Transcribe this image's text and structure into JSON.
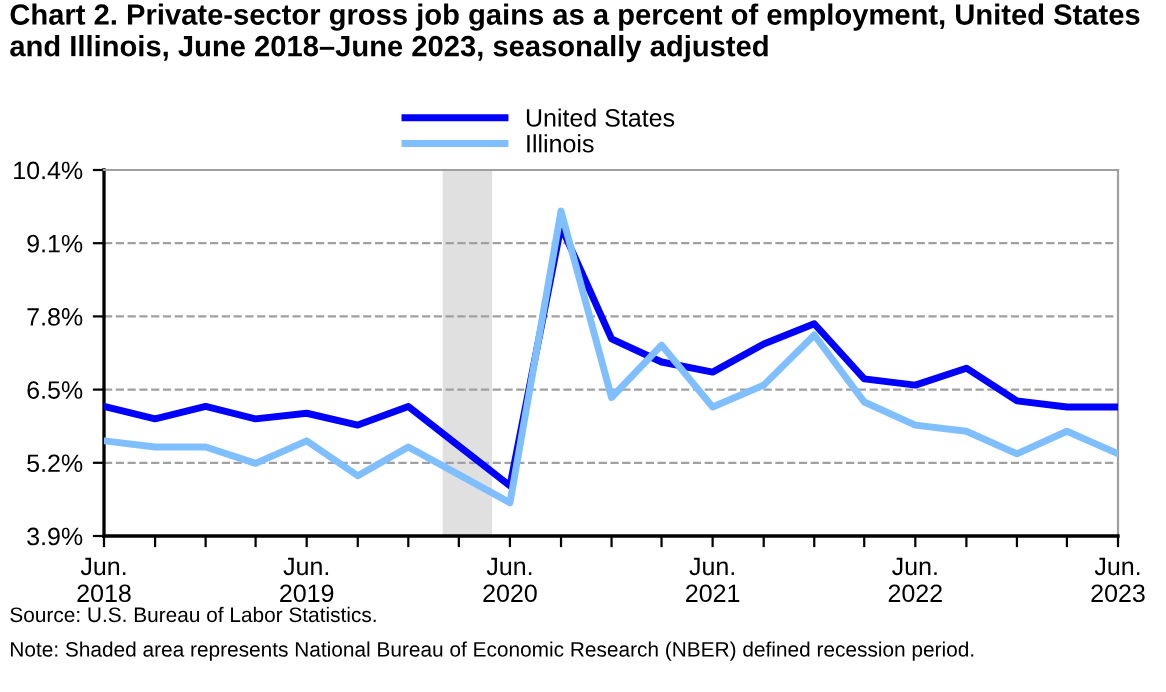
{
  "chart_data": {
    "type": "line",
    "title": "Chart 2. Private-sector gross job gains as a percent of employment, United States and Illinois, June 2018–June 2023, seasonally adjusted",
    "x": [
      "2018-06",
      "2018-09",
      "2018-12",
      "2019-03",
      "2019-06",
      "2019-09",
      "2019-12",
      "2020-03",
      "2020-06",
      "2020-09",
      "2020-12",
      "2021-03",
      "2021-06",
      "2021-09",
      "2021-12",
      "2022-03",
      "2022-06",
      "2022-09",
      "2022-12",
      "2023-03",
      "2023-06"
    ],
    "series": [
      {
        "name": "United States",
        "color": "#0000ff",
        "values": [
          6.2,
          5.98,
          6.2,
          5.98,
          6.08,
          5.87,
          6.2,
          5.5,
          4.79,
          9.4,
          7.4,
          6.99,
          6.81,
          7.31,
          7.67,
          6.69,
          6.58,
          6.88,
          6.3,
          6.19,
          6.19
        ]
      },
      {
        "name": "Illinois",
        "color": "#80bfff",
        "values": [
          5.59,
          5.48,
          5.48,
          5.19,
          5.59,
          4.97,
          5.48,
          4.99,
          4.49,
          9.67,
          6.36,
          7.29,
          6.19,
          6.58,
          7.47,
          6.28,
          5.87,
          5.76,
          5.36,
          5.76,
          5.36
        ]
      }
    ],
    "xlim": [
      "2018-06",
      "2023-06"
    ],
    "xticks": [
      {
        "value": "2018-06",
        "label": "Jun.\n2018"
      },
      {
        "value": "2018-09",
        "label": null
      },
      {
        "value": "2018-12",
        "label": null
      },
      {
        "value": "2019-03",
        "label": null
      },
      {
        "value": "2019-06",
        "label": "Jun.\n2019"
      },
      {
        "value": "2019-09",
        "label": null
      },
      {
        "value": "2019-12",
        "label": null
      },
      {
        "value": "2020-03",
        "label": null
      },
      {
        "value": "2020-06",
        "label": "Jun.\n2020"
      },
      {
        "value": "2020-09",
        "label": null
      },
      {
        "value": "2020-12",
        "label": null
      },
      {
        "value": "2021-03",
        "label": null
      },
      {
        "value": "2021-06",
        "label": "Jun.\n2021"
      },
      {
        "value": "2021-09",
        "label": null
      },
      {
        "value": "2021-12",
        "label": null
      },
      {
        "value": "2022-03",
        "label": null
      },
      {
        "value": "2022-06",
        "label": "Jun.\n2022"
      },
      {
        "value": "2022-09",
        "label": null
      },
      {
        "value": "2022-12",
        "label": null
      },
      {
        "value": "2023-03",
        "label": null
      },
      {
        "value": "2023-06",
        "label": "Jun.\n2023"
      }
    ],
    "ylim": [
      3.9,
      10.4
    ],
    "yticks": [
      {
        "value": 3.9,
        "label": "3.9%"
      },
      {
        "value": 5.2,
        "label": "5.2%"
      },
      {
        "value": 6.5,
        "label": "6.5%"
      },
      {
        "value": 7.8,
        "label": "7.8%"
      },
      {
        "value": 9.1,
        "label": "9.1%"
      },
      {
        "value": 10.4,
        "label": "10.4%"
      }
    ],
    "grid": "y",
    "legend": "top",
    "bands": [
      {
        "axis": "x",
        "from": "2020-02",
        "to": "2020-04-30",
        "color": "#e0e0e0"
      }
    ],
    "annotations": [
      "Source: U.S. Bureau of Labor Statistics.",
      "Note: Shaded area represents National Bureau of Economic Research (NBER) defined recession period."
    ]
  }
}
